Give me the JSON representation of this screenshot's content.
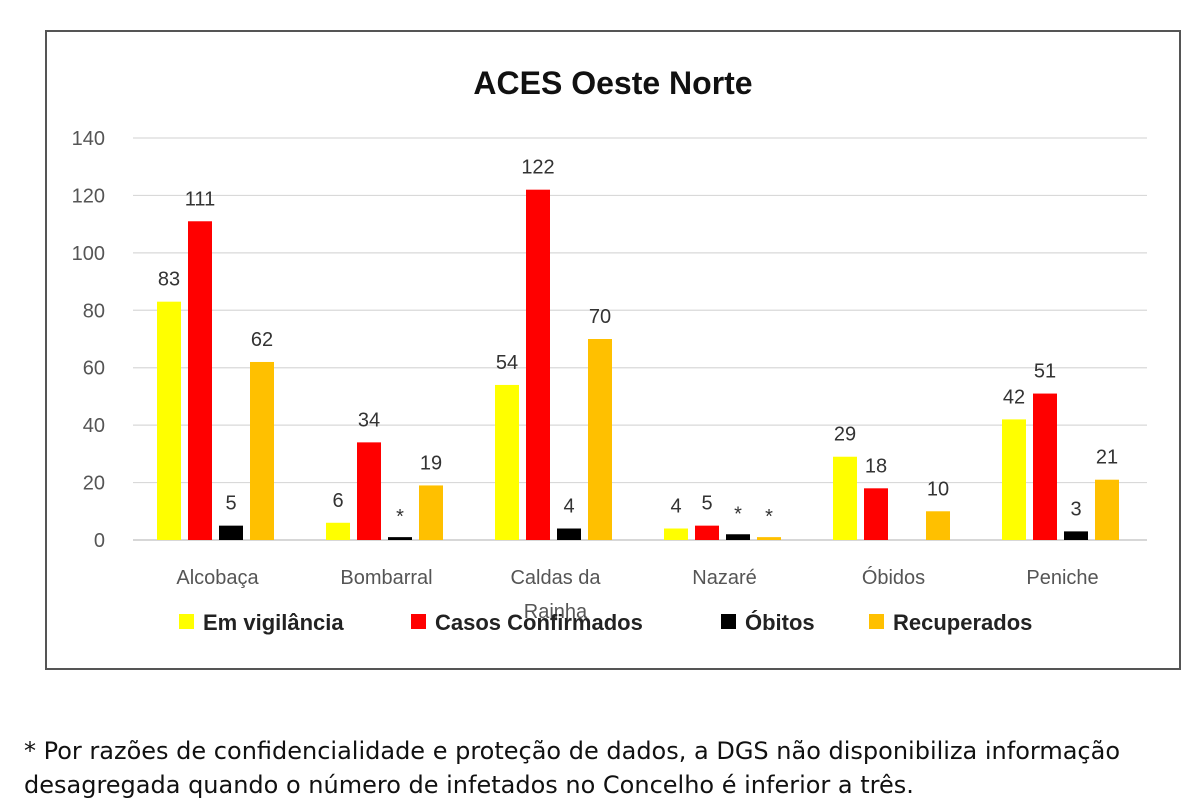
{
  "chart_data": {
    "type": "bar",
    "title": "ACES Oeste Norte",
    "categories": [
      "Alcobaça",
      "Bombarral",
      "Caldas da Rainha",
      "Nazaré",
      "Óbidos",
      "Peniche"
    ],
    "series": [
      {
        "name": "Em vigilância",
        "color": "#ffff00",
        "values": [
          83,
          6,
          54,
          4,
          29,
          42
        ],
        "labels": [
          "83",
          "6",
          "54",
          "4",
          "29",
          "42"
        ]
      },
      {
        "name": "Casos Confirmados",
        "color": "#ff0000",
        "values": [
          111,
          34,
          122,
          5,
          18,
          51
        ],
        "labels": [
          "111",
          "34",
          "122",
          "5",
          "18",
          "51"
        ]
      },
      {
        "name": "Óbitos",
        "color": "#000000",
        "values": [
          5,
          1,
          4,
          2,
          0,
          3
        ],
        "labels": [
          "5",
          "*",
          "4",
          "*",
          "",
          "3"
        ]
      },
      {
        "name": "Recuperados",
        "color": "#ffc000",
        "values": [
          62,
          19,
          70,
          1,
          10,
          21
        ],
        "labels": [
          "62",
          "19",
          "70",
          "*",
          "10",
          "21"
        ]
      }
    ],
    "ylim": [
      0,
      140
    ],
    "yticks": [
      0,
      20,
      40,
      60,
      80,
      100,
      120,
      140
    ],
    "grid": true,
    "legend": "bottom",
    "xlabel": "",
    "ylabel": ""
  },
  "footnote": "* Por razões de confidencialidade e proteção de dados, a DGS não disponibiliza informação desagregada quando o número de infetados no Concelho é inferior a três."
}
